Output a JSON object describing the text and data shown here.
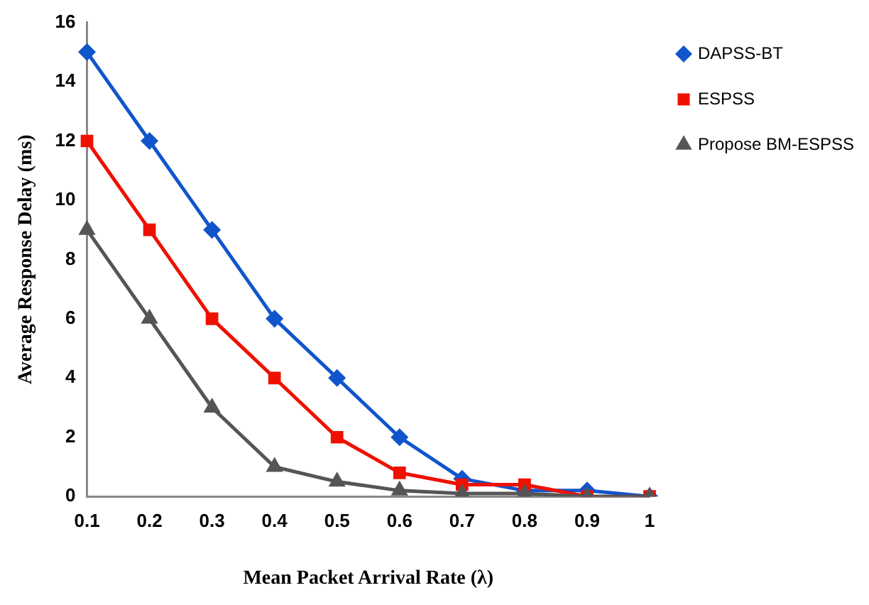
{
  "chart_data": {
    "type": "line",
    "xlabel": "Mean Packet Arrival Rate (λ)",
    "ylabel": "Average Response Delay (ms)",
    "categories": [
      "0.1",
      "0.2",
      "0.3",
      "0.4",
      "0.5",
      "0.6",
      "0.7",
      "0.8",
      "0.9",
      "1"
    ],
    "series": [
      {
        "name": "DAPSS-BT",
        "color": "#1155cc",
        "marker": "diamond",
        "values": [
          15,
          12,
          9,
          6,
          4,
          2,
          0.6,
          0.2,
          0.2,
          0
        ]
      },
      {
        "name": "ESPSS",
        "color": "#ee1100",
        "marker": "square",
        "values": [
          12,
          9,
          6,
          4,
          2,
          0.8,
          0.4,
          0.4,
          0,
          0
        ]
      },
      {
        "name": "Propose BM-ESPSS",
        "color": "#555555",
        "marker": "triangle",
        "values": [
          9,
          6,
          3,
          1,
          0.5,
          0.2,
          0.1,
          0.1,
          0,
          0
        ]
      }
    ],
    "ylim": [
      0,
      16
    ],
    "yticks": [
      0,
      2,
      4,
      6,
      8,
      10,
      12,
      14,
      16
    ],
    "grid": false,
    "legend": "top right",
    "line_style": "solid"
  }
}
